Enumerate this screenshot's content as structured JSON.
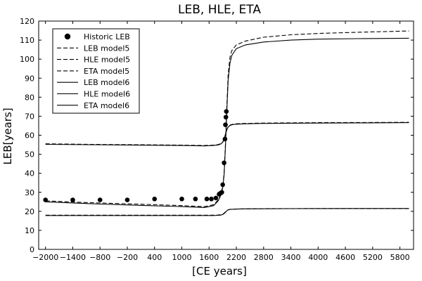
{
  "chart_data": {
    "type": "line",
    "title": "LEB, HLE, ETA",
    "xlabel": "[CE years]",
    "ylabel": "LEB[years]",
    "xlim": [
      -2150,
      6100
    ],
    "ylim": [
      0,
      120
    ],
    "xticks": [
      -2000,
      -1400,
      -800,
      -200,
      400,
      1000,
      1600,
      2200,
      2800,
      3400,
      4000,
      4600,
      5200,
      5800
    ],
    "xtick_labels": [
      "−2000",
      "−1400",
      "−800",
      "−200",
      "400",
      "1000",
      "1600",
      "2200",
      "2800",
      "3400",
      "4000",
      "4600",
      "5200",
      "5800"
    ],
    "yticks": [
      0,
      10,
      20,
      30,
      40,
      50,
      60,
      70,
      80,
      90,
      100,
      110,
      120
    ],
    "grid": false,
    "legend_position": "top-left",
    "legend": [
      {
        "label": "Historic LEB",
        "style": "marker"
      },
      {
        "label": "LEB model5",
        "style": "dashed"
      },
      {
        "label": "HLE model5",
        "style": "dashed"
      },
      {
        "label": "ETA model5",
        "style": "dashed"
      },
      {
        "label": "LEB model6",
        "style": "solid"
      },
      {
        "label": "HLE model6",
        "style": "solid"
      },
      {
        "label": "ETA model6",
        "style": "solid"
      }
    ],
    "scatter": {
      "name": "Historic LEB",
      "points": [
        [
          -2000,
          26
        ],
        [
          -1400,
          26
        ],
        [
          -800,
          26
        ],
        [
          -200,
          26
        ],
        [
          400,
          26.5
        ],
        [
          1000,
          26.5
        ],
        [
          1300,
          26.5
        ],
        [
          1550,
          26.5
        ],
        [
          1650,
          26.5
        ],
        [
          1750,
          27
        ],
        [
          1820,
          29
        ],
        [
          1850,
          29.5
        ],
        [
          1880,
          30
        ],
        [
          1900,
          34
        ],
        [
          1930,
          45.5
        ],
        [
          1950,
          58
        ],
        [
          1960,
          65.5
        ],
        [
          1970,
          69.5
        ],
        [
          1980,
          72.5
        ]
      ]
    },
    "series": [
      {
        "name": "LEB model5",
        "style": "dashed",
        "x": [
          -2000,
          -1000,
          0,
          1000,
          1500,
          1700,
          1800,
          1850,
          1900,
          1930,
          1960,
          1990,
          2020,
          2060,
          2100,
          2200,
          2400,
          2800,
          3400,
          4000,
          5000,
          6000
        ],
        "y": [
          25.5,
          24.5,
          23.8,
          23,
          22.5,
          23.5,
          26,
          28.5,
          33,
          40,
          55,
          75,
          92,
          101,
          104.5,
          107.5,
          109.5,
          111.5,
          112.8,
          113.5,
          114.2,
          114.8
        ]
      },
      {
        "name": "HLE model5",
        "style": "dashed",
        "x": [
          -2000,
          -1000,
          0,
          1000,
          1500,
          1700,
          1800,
          1850,
          1900,
          1930,
          1960,
          1990,
          2020,
          2060,
          2100,
          2200,
          2400,
          2800,
          3400,
          4000,
          5000,
          6000
        ],
        "y": [
          18,
          18,
          18,
          18,
          18,
          18,
          18.1,
          18.2,
          18.5,
          19,
          19.7,
          20.4,
          20.8,
          21,
          21.1,
          21.2,
          21.3,
          21.4,
          21.45,
          21.5,
          21.5,
          21.5
        ]
      },
      {
        "name": "ETA model5",
        "style": "dashed",
        "x": [
          -2000,
          -1000,
          0,
          1000,
          1500,
          1700,
          1800,
          1850,
          1900,
          1930,
          1960,
          1990,
          2020,
          2060,
          2100,
          2200,
          2400,
          2800,
          3400,
          4000,
          5000,
          6000
        ],
        "y": [
          55.5,
          55.2,
          55,
          54.8,
          54.6,
          54.8,
          55.1,
          55.5,
          56.5,
          58,
          60.5,
          63,
          64.5,
          65.3,
          65.7,
          66,
          66.2,
          66.4,
          66.5,
          66.6,
          66.7,
          66.8
        ]
      },
      {
        "name": "LEB model6",
        "style": "solid",
        "x": [
          -2000,
          -1000,
          0,
          1000,
          1500,
          1700,
          1800,
          1850,
          1900,
          1930,
          1960,
          1990,
          2020,
          2060,
          2100,
          2200,
          2400,
          2800,
          3400,
          4000,
          5000,
          6000
        ],
        "y": [
          25,
          24,
          23.2,
          22.5,
          22,
          23,
          25.5,
          28,
          32.5,
          39,
          53.5,
          73,
          89,
          98,
          102,
          105.5,
          107.5,
          109,
          110,
          110.5,
          110.8,
          111
        ]
      },
      {
        "name": "HLE model6",
        "style": "solid",
        "x": [
          -2000,
          -1000,
          0,
          1000,
          1500,
          1700,
          1800,
          1850,
          1900,
          1930,
          1960,
          1990,
          2020,
          2060,
          2100,
          2200,
          2400,
          2800,
          3400,
          4000,
          5000,
          6000
        ],
        "y": [
          17.8,
          17.8,
          17.8,
          17.8,
          17.8,
          17.8,
          17.9,
          18,
          18.3,
          18.8,
          19.5,
          20.3,
          20.8,
          21,
          21.1,
          21.2,
          21.3,
          21.35,
          21.4,
          21.45,
          21.5,
          21.5
        ]
      },
      {
        "name": "ETA model6",
        "style": "solid",
        "x": [
          -2000,
          -1000,
          0,
          1000,
          1500,
          1700,
          1800,
          1850,
          1900,
          1930,
          1960,
          1990,
          2020,
          2060,
          2100,
          2200,
          2400,
          2800,
          3400,
          4000,
          5000,
          6000
        ],
        "y": [
          55.2,
          55,
          54.8,
          54.6,
          54.4,
          54.6,
          54.9,
          55.3,
          56.3,
          57.8,
          60.3,
          62.8,
          64.3,
          65.1,
          65.5,
          65.8,
          66,
          66.2,
          66.3,
          66.4,
          66.5,
          66.6
        ]
      }
    ]
  }
}
